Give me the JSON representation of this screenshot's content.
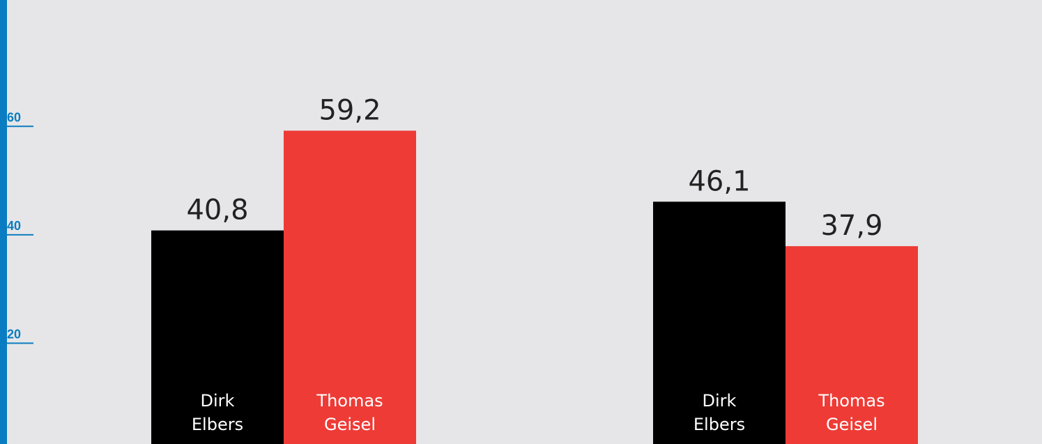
{
  "chart_data": {
    "type": "bar",
    "categories": [
      null,
      null
    ],
    "series": [
      {
        "name": "Dirk Elbers",
        "color": "#000000",
        "values": [
          40.8,
          46.1
        ],
        "value_labels": [
          "40,8",
          "46,1"
        ]
      },
      {
        "name": "Thomas Geisel",
        "color": "#ee3b36",
        "values": [
          59.2,
          37.9
        ],
        "value_labels": [
          "59,2",
          "37,9"
        ]
      }
    ],
    "ylim": [
      0,
      83.3
    ],
    "yticks": [
      20,
      40,
      60
    ],
    "axis_color": "#0a7cc1"
  }
}
